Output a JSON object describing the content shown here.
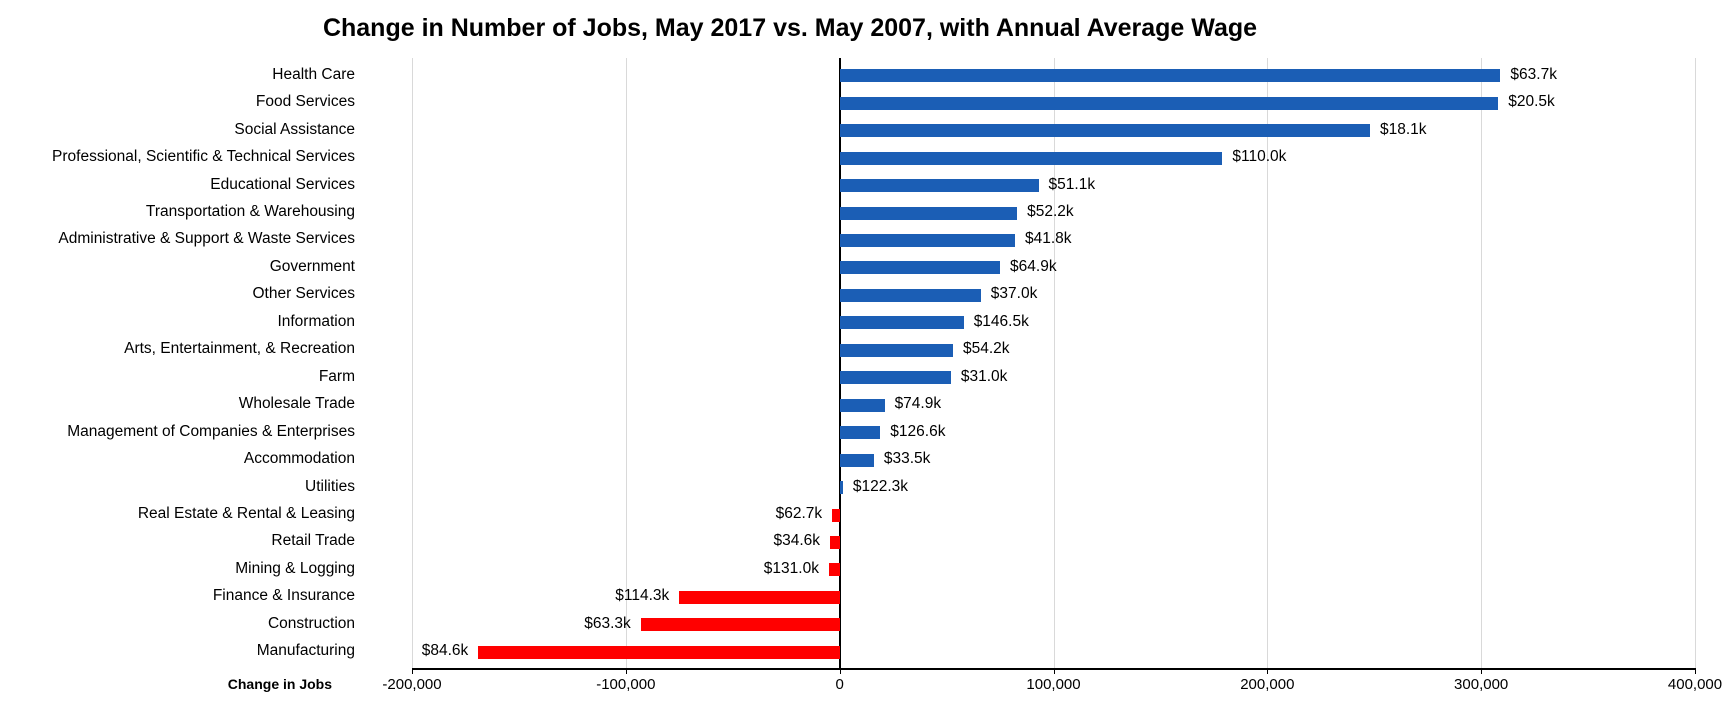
{
  "chart_data": {
    "type": "bar",
    "orientation": "horizontal",
    "title": "Change in Number of Jobs, May 2017 vs. May 2007, with Annual Average Wage",
    "xlabel": "Change in Jobs",
    "ylabel": "",
    "xlim": [
      -200000,
      400000
    ],
    "xticks": [
      -200000,
      -100000,
      0,
      100000,
      200000,
      300000,
      400000
    ],
    "xtick_labels": [
      "-200,000",
      "-100,000",
      "0",
      "100,000",
      "200,000",
      "300,000",
      "400,000"
    ],
    "grid": "vertical-gridlines-on",
    "legend": "none",
    "colors": {
      "positive_bar": "#1B5EB5",
      "negative_bar": "#FF0000",
      "gridline": "#D9D9D9",
      "axis": "#000000",
      "text": "#000000",
      "background": "#FFFFFF"
    },
    "value_labels_are": "annual average wage",
    "rows": [
      {
        "category": "Health Care",
        "change_in_jobs": 309000,
        "wage_label": "$63.7k"
      },
      {
        "category": "Food Services",
        "change_in_jobs": 308000,
        "wage_label": "$20.5k"
      },
      {
        "category": "Social Assistance",
        "change_in_jobs": 248000,
        "wage_label": "$18.1k"
      },
      {
        "category": "Professional, Scientific & Technical Services",
        "change_in_jobs": 179000,
        "wage_label": "$110.0k"
      },
      {
        "category": "Educational Services",
        "change_in_jobs": 93000,
        "wage_label": "$51.1k"
      },
      {
        "category": "Transportation & Warehousing",
        "change_in_jobs": 83000,
        "wage_label": "$52.2k"
      },
      {
        "category": "Administrative & Support & Waste Services",
        "change_in_jobs": 82000,
        "wage_label": "$41.8k"
      },
      {
        "category": "Government",
        "change_in_jobs": 75000,
        "wage_label": "$64.9k"
      },
      {
        "category": "Other Services",
        "change_in_jobs": 66000,
        "wage_label": "$37.0k"
      },
      {
        "category": "Information",
        "change_in_jobs": 58000,
        "wage_label": "$146.5k"
      },
      {
        "category": "Arts, Entertainment, & Recreation",
        "change_in_jobs": 53000,
        "wage_label": "$54.2k"
      },
      {
        "category": "Farm",
        "change_in_jobs": 52000,
        "wage_label": "$31.0k"
      },
      {
        "category": "Wholesale Trade",
        "change_in_jobs": 21000,
        "wage_label": "$74.9k"
      },
      {
        "category": "Management of Companies & Enterprises",
        "change_in_jobs": 19000,
        "wage_label": "$126.6k"
      },
      {
        "category": "Accommodation",
        "change_in_jobs": 16000,
        "wage_label": "$33.5k"
      },
      {
        "category": "Utilities",
        "change_in_jobs": 1500,
        "wage_label": "$122.3k"
      },
      {
        "category": "Real Estate & Rental & Leasing",
        "change_in_jobs": -3500,
        "wage_label": "$62.7k"
      },
      {
        "category": "Retail Trade",
        "change_in_jobs": -4500,
        "wage_label": "$34.6k"
      },
      {
        "category": "Mining & Logging",
        "change_in_jobs": -5000,
        "wage_label": "$131.0k"
      },
      {
        "category": "Finance & Insurance",
        "change_in_jobs": -75000,
        "wage_label": "$114.3k"
      },
      {
        "category": "Construction",
        "change_in_jobs": -93000,
        "wage_label": "$63.3k"
      },
      {
        "category": "Manufacturing",
        "change_in_jobs": -169000,
        "wage_label": "$84.6k"
      }
    ]
  }
}
